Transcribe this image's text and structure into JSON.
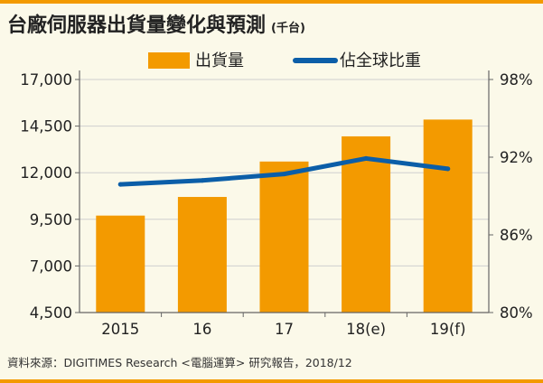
{
  "title": "台廠伺服器出貨量變化與預測",
  "unit": "(千台)",
  "source": "資料來源：DIGITIMES Research <電腦運算> 研究報告，2018/12",
  "chart_data": {
    "type": "bar",
    "categories": [
      "2015",
      "16",
      "17",
      "18(e)",
      "19(f)"
    ],
    "series": [
      {
        "name": "出貨量",
        "type": "bar",
        "axis": "left",
        "color": "#f39a00",
        "values": [
          9700,
          10700,
          12600,
          13950,
          14850
        ]
      },
      {
        "name": "佔全球比重",
        "type": "line",
        "axis": "right",
        "color": "#0b5ea8",
        "values": [
          0.899,
          0.902,
          0.907,
          0.919,
          0.911
        ]
      }
    ],
    "y_left": {
      "ylim": [
        4500,
        17000
      ],
      "ticks": [
        4500,
        7000,
        9500,
        12000,
        14500,
        17000
      ],
      "tick_labels": [
        "4,500",
        "7,000",
        "9,500",
        "12,000",
        "14,500",
        "17,000"
      ]
    },
    "y_right": {
      "ylim": [
        0.8,
        0.98
      ],
      "ticks": [
        0.8,
        0.86,
        0.92,
        0.98
      ],
      "tick_labels": [
        "80%",
        "86%",
        "92%",
        "98%"
      ]
    },
    "legend": "top",
    "grid": true
  }
}
